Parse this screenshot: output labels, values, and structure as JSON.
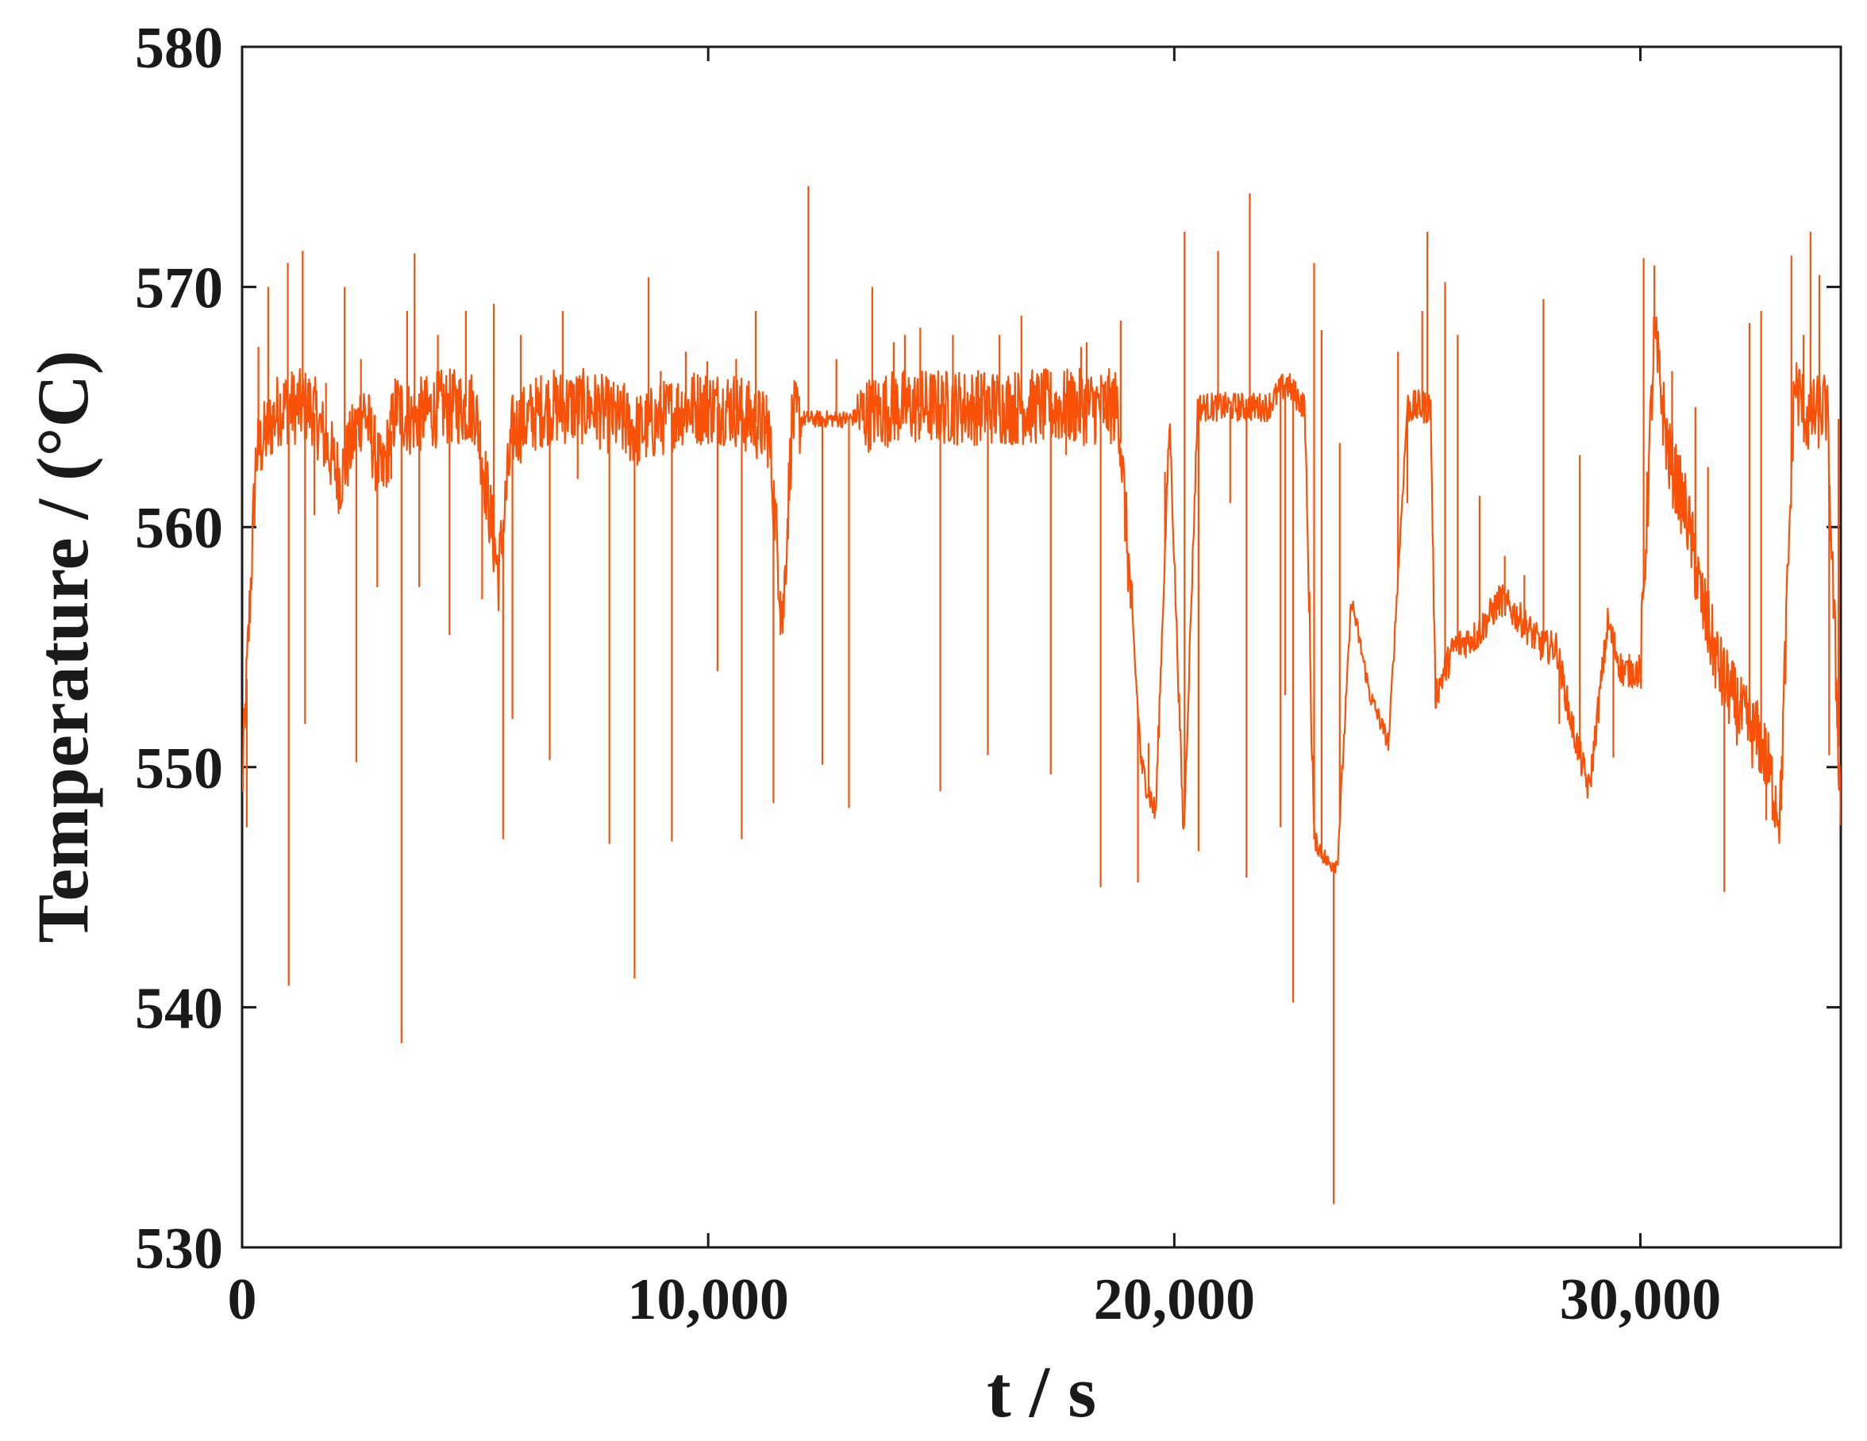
{
  "chart_data": {
    "type": "line",
    "title": "",
    "xlabel": "t / s",
    "ylabel": "Temperature / (°C)",
    "xlim": [
      0,
      34300
    ],
    "ylim": [
      530,
      580
    ],
    "x_ticks": [
      0,
      10000,
      20000,
      30000
    ],
    "x_tick_labels": [
      "0",
      "10,000",
      "20,000",
      "30,000"
    ],
    "y_ticks": [
      530,
      540,
      550,
      560,
      570,
      580
    ],
    "y_tick_labels": [
      "530",
      "540",
      "550",
      "560",
      "570",
      "580"
    ],
    "grid": false,
    "legend": "none",
    "series_color": "#f95108",
    "series": [
      {
        "x": [
          0,
          300,
          800,
          1500,
          2100,
          2600,
          3000,
          3300,
          3600,
          4300,
          5000,
          5500,
          5800,
          6500,
          7500,
          8500,
          9500,
          10500,
          11300,
          11600,
          11800,
          12500,
          13000,
          14000,
          15000,
          16000,
          17000,
          18000,
          18800,
          19100,
          19300,
          19600,
          19900,
          20200,
          20500,
          21000,
          21500,
          22000,
          22400,
          22800,
          23000,
          23300,
          23500,
          23800,
          24200,
          24600,
          25000,
          25500,
          25600,
          26000,
          26500,
          27000,
          27500,
          27900,
          28200,
          28500,
          28900,
          29300,
          29600,
          30000,
          30300,
          30600,
          31000,
          31300,
          31700,
          32200,
          32600,
          33000,
          33300,
          33600,
          34000,
          34300
        ],
        "y": [
          549,
          563,
          565,
          565,
          562,
          565,
          562,
          565,
          564.5,
          565,
          565,
          558,
          564,
          565,
          565,
          564,
          565,
          565,
          564,
          556,
          564.5,
          564.5,
          564.5,
          565,
          565,
          565,
          565,
          565,
          565,
          556,
          550,
          548,
          564.5,
          547,
          565,
          565,
          565,
          565,
          566,
          565,
          547,
          546,
          546,
          557,
          553,
          551,
          565,
          565,
          553,
          555,
          555.5,
          557,
          556,
          555,
          555,
          552,
          549,
          556,
          554,
          554,
          568,
          563,
          560.5,
          557,
          554,
          552,
          551,
          548,
          566,
          564.5,
          565,
          548
        ]
      }
    ],
    "spikes": [
      [
        100,
        547.5
      ],
      [
        350,
        567.5
      ],
      [
        560,
        570
      ],
      [
        760,
        566
      ],
      [
        980,
        571
      ],
      [
        1000,
        540.9
      ],
      [
        1300,
        571.5
      ],
      [
        1350,
        551.8
      ],
      [
        1550,
        560.5
      ],
      [
        1800,
        566
      ],
      [
        2200,
        570
      ],
      [
        2450,
        550.2
      ],
      [
        2550,
        567
      ],
      [
        2900,
        557.5
      ],
      [
        3200,
        562
      ],
      [
        3420,
        538.5
      ],
      [
        3540,
        569
      ],
      [
        3700,
        571.4
      ],
      [
        3800,
        557.5
      ],
      [
        4200,
        568
      ],
      [
        4450,
        555.5
      ],
      [
        4800,
        569
      ],
      [
        5150,
        557
      ],
      [
        5400,
        569.3
      ],
      [
        5600,
        547
      ],
      [
        5800,
        552
      ],
      [
        5980,
        568
      ],
      [
        6600,
        550.3
      ],
      [
        6880,
        569
      ],
      [
        7200,
        562
      ],
      [
        7650,
        565.8
      ],
      [
        7880,
        546.8
      ],
      [
        8200,
        566
      ],
      [
        8420,
        541.2
      ],
      [
        8720,
        570.4
      ],
      [
        8980,
        566.5
      ],
      [
        9220,
        546.9
      ],
      [
        9520,
        567.3
      ],
      [
        9980,
        566.9
      ],
      [
        10200,
        554
      ],
      [
        10600,
        567
      ],
      [
        10720,
        547
      ],
      [
        10920,
        565
      ],
      [
        11020,
        569
      ],
      [
        11250,
        565.5
      ],
      [
        11400,
        548.5
      ],
      [
        11550,
        555.5
      ],
      [
        12150,
        574.2
      ],
      [
        12450,
        550.1
      ],
      [
        12750,
        567
      ],
      [
        13020,
        548.3
      ],
      [
        13520,
        570
      ],
      [
        13980,
        567.7
      ],
      [
        14220,
        568
      ],
      [
        14550,
        568.3
      ],
      [
        14980,
        549
      ],
      [
        15250,
        568
      ],
      [
        16000,
        550.5
      ],
      [
        16250,
        568
      ],
      [
        16720,
        568.8
      ],
      [
        17350,
        549.7
      ],
      [
        17680,
        563
      ],
      [
        18000,
        567.5
      ],
      [
        18120,
        567.7
      ],
      [
        18420,
        545
      ],
      [
        18500,
        564.5
      ],
      [
        18850,
        568.6
      ],
      [
        19220,
        545.2
      ],
      [
        19450,
        551
      ],
      [
        19800,
        562.3
      ],
      [
        20220,
        572.3
      ],
      [
        20520,
        546.5
      ],
      [
        20940,
        571.5
      ],
      [
        21200,
        561
      ],
      [
        21550,
        545.4
      ],
      [
        21620,
        573.9
      ],
      [
        22280,
        547.5
      ],
      [
        22380,
        553
      ],
      [
        22550,
        540.2
      ],
      [
        23000,
        571
      ],
      [
        23160,
        568.2
      ],
      [
        23420,
        531.8
      ],
      [
        23550,
        563.5
      ],
      [
        24800,
        567.3
      ],
      [
        25000,
        561
      ],
      [
        25320,
        569
      ],
      [
        25430,
        572.3
      ],
      [
        25600,
        552.7
      ],
      [
        25810,
        570.2
      ],
      [
        26080,
        568
      ],
      [
        26550,
        561.3
      ],
      [
        27090,
        558.8
      ],
      [
        27510,
        558
      ],
      [
        27920,
        569.5
      ],
      [
        28260,
        551.8
      ],
      [
        28700,
        563
      ],
      [
        29420,
        550.4
      ],
      [
        30070,
        571.2
      ],
      [
        30300,
        570.9
      ],
      [
        30680,
        566.5
      ],
      [
        31180,
        565
      ],
      [
        31450,
        562.5
      ],
      [
        31800,
        544.8
      ],
      [
        32340,
        568.5
      ],
      [
        32590,
        569
      ],
      [
        32700,
        547.8
      ],
      [
        33240,
        571.3
      ],
      [
        33500,
        568
      ],
      [
        33650,
        572.3
      ],
      [
        33840,
        570.5
      ],
      [
        34050,
        550.5
      ],
      [
        34250,
        564.5
      ]
    ]
  }
}
